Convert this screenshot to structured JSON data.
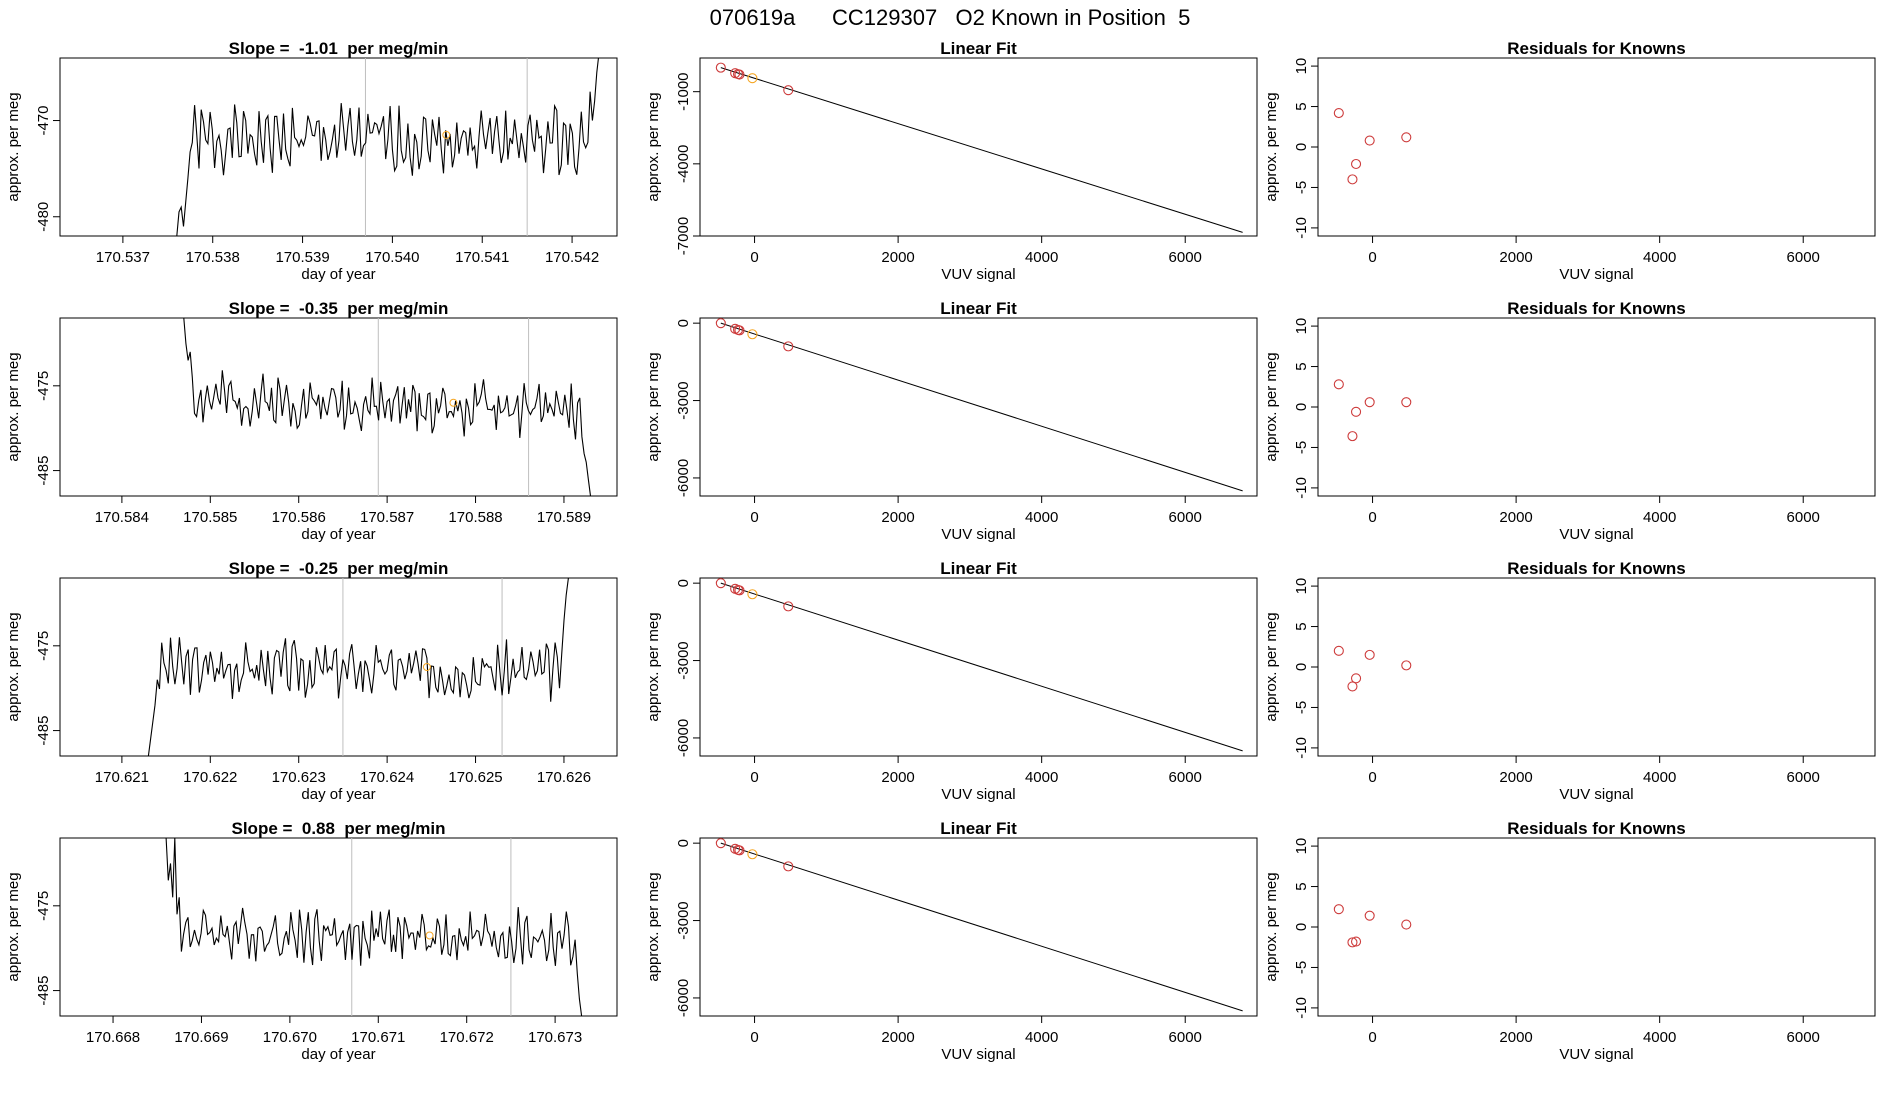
{
  "figure": {
    "title": "070619a      CC129307   O2 Known in Position  5"
  },
  "colors": {
    "line": "#000000",
    "vertical_marker": "#bebebe",
    "known_point": "#cd3b3b",
    "current_point": "#f5a623"
  },
  "chart_data": [
    {
      "type": "line",
      "row": 0,
      "col": 0,
      "title": "Slope =  -1.01  per meg/min",
      "xlabel": "day of year",
      "ylabel": "approx. per meg",
      "xlim": [
        170.5363,
        170.5425
      ],
      "ylim": [
        -482,
        -463.5
      ],
      "xticks": [
        170.537,
        170.538,
        170.539,
        170.54,
        170.541,
        170.542
      ],
      "xticklabels": [
        "170.537",
        "170.538",
        "170.539",
        "170.540",
        "170.541",
        "170.542"
      ],
      "yticks": [
        -480,
        -470
      ],
      "yticklabels": [
        "-480",
        "-470"
      ],
      "vlines": [
        170.5397,
        170.5415
      ],
      "marker": {
        "x": 170.5406,
        "y": -471.5
      },
      "trace": {
        "x_start": 170.5376,
        "x_end": 170.5423,
        "start": -483,
        "end": -463,
        "base": -472,
        "level": -472,
        "amp": 1.9,
        "seed": 1,
        "lead": [
          -482,
          -479.5,
          -479,
          -481,
          -478.5,
          -476
        ],
        "tail": [
          -467,
          -470,
          -468,
          -465,
          -463
        ]
      }
    },
    {
      "type": "scatter",
      "row": 0,
      "col": 1,
      "title": "Linear Fit",
      "xlabel": "VUV signal",
      "ylabel": "approx. per meg",
      "xlim": [
        -760,
        7000
      ],
      "ylim": [
        -7000,
        400
      ],
      "xticks": [
        0,
        2000,
        4000,
        6000
      ],
      "xticklabels": [
        "0",
        "2000",
        "4000",
        "6000"
      ],
      "yticks": [
        -7000,
        -4000,
        -1000
      ],
      "yticklabels": [
        "-7000",
        "-4000",
        "-1000"
      ],
      "fit": {
        "x": [
          -470,
          6800
        ],
        "y": [
          0,
          -6850
        ]
      },
      "points": [
        {
          "x": -470,
          "y": 0,
          "kind": "known"
        },
        {
          "x": -270,
          "y": -230,
          "kind": "known"
        },
        {
          "x": -230,
          "y": -270,
          "kind": "known"
        },
        {
          "x": -210,
          "y": -290,
          "kind": "known"
        },
        {
          "x": -30,
          "y": -440,
          "kind": "current"
        },
        {
          "x": 470,
          "y": -940,
          "kind": "known"
        }
      ]
    },
    {
      "type": "scatter",
      "row": 0,
      "col": 2,
      "title": "Residuals for Knowns",
      "xlabel": "VUV signal",
      "ylabel": "approx. per meg",
      "xlim": [
        -760,
        7000
      ],
      "ylim": [
        -11,
        11
      ],
      "xticks": [
        0,
        2000,
        4000,
        6000
      ],
      "xticklabels": [
        "0",
        "2000",
        "4000",
        "6000"
      ],
      "yticks": [
        -10,
        -5,
        0,
        5,
        10
      ],
      "yticklabels": [
        "-10",
        "-5",
        "0",
        "5",
        "10"
      ],
      "points": [
        {
          "x": -470,
          "y": 4.2,
          "kind": "known"
        },
        {
          "x": -280,
          "y": -4.0,
          "kind": "known"
        },
        {
          "x": -230,
          "y": -2.1,
          "kind": "known"
        },
        {
          "x": -40,
          "y": 0.8,
          "kind": "known"
        },
        {
          "x": 470,
          "y": 1.2,
          "kind": "known"
        }
      ]
    },
    {
      "type": "line",
      "row": 1,
      "col": 0,
      "title": "Slope =  -0.35  per meg/min",
      "xlabel": "day of year",
      "ylabel": "approx. per meg",
      "xlim": [
        170.5833,
        170.5896
      ],
      "ylim": [
        -488,
        -467
      ],
      "xticks": [
        170.584,
        170.585,
        170.586,
        170.587,
        170.588,
        170.589
      ],
      "xticklabels": [
        "170.584",
        "170.585",
        "170.586",
        "170.587",
        "170.588",
        "170.589"
      ],
      "yticks": [
        -485,
        -475
      ],
      "yticklabels": [
        "-485",
        "-475"
      ],
      "vlines": [
        170.5869,
        170.5886
      ],
      "marker": {
        "x": 170.58775,
        "y": -477
      },
      "trace": {
        "x_start": 170.5847,
        "x_end": 170.5893,
        "start": -467,
        "end": -488,
        "base": -476.5,
        "level": -478,
        "amp": 1.7,
        "seed": 2,
        "lead": [
          -467,
          -470,
          -472,
          -471,
          -474
        ],
        "tail": [
          -481,
          -483,
          -484,
          -486,
          -488
        ]
      }
    },
    {
      "type": "scatter",
      "row": 1,
      "col": 1,
      "title": "Linear Fit",
      "xlabel": "VUV signal",
      "ylabel": "approx. per meg",
      "xlim": [
        -760,
        7000
      ],
      "ylim": [
        -6700,
        200
      ],
      "xticks": [
        0,
        2000,
        4000,
        6000
      ],
      "xticklabels": [
        "0",
        "2000",
        "4000",
        "6000"
      ],
      "yticks": [
        -6000,
        -3000,
        0
      ],
      "yticklabels": [
        "-6000",
        "-3000",
        "0"
      ],
      "fit": {
        "x": [
          -470,
          6800
        ],
        "y": [
          0,
          -6500
        ]
      },
      "points": [
        {
          "x": -470,
          "y": 0,
          "kind": "known"
        },
        {
          "x": -270,
          "y": -220,
          "kind": "known"
        },
        {
          "x": -230,
          "y": -260,
          "kind": "known"
        },
        {
          "x": -210,
          "y": -280,
          "kind": "known"
        },
        {
          "x": -30,
          "y": -430,
          "kind": "current"
        },
        {
          "x": 470,
          "y": -900,
          "kind": "known"
        }
      ]
    },
    {
      "type": "scatter",
      "row": 1,
      "col": 2,
      "title": "Residuals for Knowns",
      "xlabel": "VUV signal",
      "ylabel": "approx. per meg",
      "xlim": [
        -760,
        7000
      ],
      "ylim": [
        -11,
        11
      ],
      "xticks": [
        0,
        2000,
        4000,
        6000
      ],
      "xticklabels": [
        "0",
        "2000",
        "4000",
        "6000"
      ],
      "yticks": [
        -10,
        -5,
        0,
        5,
        10
      ],
      "yticklabels": [
        "-10",
        "-5",
        "0",
        "5",
        "10"
      ],
      "points": [
        {
          "x": -470,
          "y": 2.8,
          "kind": "known"
        },
        {
          "x": -280,
          "y": -3.6,
          "kind": "known"
        },
        {
          "x": -230,
          "y": -0.6,
          "kind": "known"
        },
        {
          "x": -40,
          "y": 0.6,
          "kind": "known"
        },
        {
          "x": 470,
          "y": 0.6,
          "kind": "known"
        }
      ]
    },
    {
      "type": "line",
      "row": 2,
      "col": 0,
      "title": "Slope =  -0.25  per meg/min",
      "xlabel": "day of year",
      "ylabel": "approx. per meg",
      "xlim": [
        170.6203,
        170.6266
      ],
      "ylim": [
        -488,
        -467
      ],
      "xticks": [
        170.621,
        170.622,
        170.623,
        170.624,
        170.625,
        170.626
      ],
      "xticklabels": [
        "170.621",
        "170.622",
        "170.623",
        "170.624",
        "170.625",
        "170.626"
      ],
      "yticks": [
        -485,
        -475
      ],
      "yticklabels": [
        "-485",
        "-475"
      ],
      "vlines": [
        170.6235,
        170.6253
      ],
      "marker": {
        "x": 170.62445,
        "y": -477.5
      },
      "trace": {
        "x_start": 170.6213,
        "x_end": 170.62605,
        "start": -488,
        "end": -467,
        "base": -477.5,
        "level": -478,
        "amp": 1.8,
        "seed": 3,
        "lead": [
          -488,
          -486,
          -484,
          -482,
          -479
        ],
        "tail": [
          -480,
          -476,
          -472,
          -469,
          -467
        ]
      }
    },
    {
      "type": "scatter",
      "row": 2,
      "col": 1,
      "title": "Linear Fit",
      "xlabel": "VUV signal",
      "ylabel": "approx. per meg",
      "xlim": [
        -760,
        7000
      ],
      "ylim": [
        -6700,
        200
      ],
      "xticks": [
        0,
        2000,
        4000,
        6000
      ],
      "xticklabels": [
        "0",
        "2000",
        "4000",
        "6000"
      ],
      "yticks": [
        -6000,
        -3000,
        0
      ],
      "yticklabels": [
        "-6000",
        "-3000",
        "0"
      ],
      "fit": {
        "x": [
          -470,
          6800
        ],
        "y": [
          0,
          -6500
        ]
      },
      "points": [
        {
          "x": -470,
          "y": 0,
          "kind": "known"
        },
        {
          "x": -270,
          "y": -220,
          "kind": "known"
        },
        {
          "x": -230,
          "y": -260,
          "kind": "known"
        },
        {
          "x": -210,
          "y": -280,
          "kind": "known"
        },
        {
          "x": -30,
          "y": -430,
          "kind": "current"
        },
        {
          "x": 470,
          "y": -900,
          "kind": "known"
        }
      ]
    },
    {
      "type": "scatter",
      "row": 2,
      "col": 2,
      "title": "Residuals for Knowns",
      "xlabel": "VUV signal",
      "ylabel": "approx. per meg",
      "xlim": [
        -760,
        7000
      ],
      "ylim": [
        -11,
        11
      ],
      "xticks": [
        0,
        2000,
        4000,
        6000
      ],
      "xticklabels": [
        "0",
        "2000",
        "4000",
        "6000"
      ],
      "yticks": [
        -10,
        -5,
        0,
        5,
        10
      ],
      "yticklabels": [
        "-10",
        "-5",
        "0",
        "5",
        "10"
      ],
      "points": [
        {
          "x": -470,
          "y": 2.0,
          "kind": "known"
        },
        {
          "x": -280,
          "y": -2.4,
          "kind": "known"
        },
        {
          "x": -230,
          "y": -1.4,
          "kind": "known"
        },
        {
          "x": -40,
          "y": 1.5,
          "kind": "known"
        },
        {
          "x": 470,
          "y": 0.2,
          "kind": "known"
        }
      ]
    },
    {
      "type": "line",
      "row": 3,
      "col": 0,
      "title": "Slope =  0.88  per meg/min",
      "xlabel": "day of year",
      "ylabel": "approx. per meg",
      "xlim": [
        170.6674,
        170.6737
      ],
      "ylim": [
        -488,
        -467
      ],
      "xticks": [
        170.668,
        170.669,
        170.67,
        170.671,
        170.672,
        170.673
      ],
      "xticklabels": [
        "170.668",
        "170.669",
        "170.670",
        "170.671",
        "170.672",
        "170.673"
      ],
      "yticks": [
        -485,
        -475
      ],
      "yticklabels": [
        "-485",
        "-475"
      ],
      "vlines": [
        170.6707,
        170.6725
      ],
      "marker": {
        "x": 170.67158,
        "y": -478.5
      },
      "trace": {
        "x_start": 170.6686,
        "x_end": 170.6733,
        "start": -467,
        "end": -488,
        "base": -478,
        "level": -479,
        "amp": 1.8,
        "seed": 4,
        "lead": [
          -467,
          -472,
          -470,
          -474,
          -467,
          -476,
          -474
        ],
        "tail": [
          -481,
          -479,
          -483,
          -486,
          -488
        ]
      }
    },
    {
      "type": "scatter",
      "row": 3,
      "col": 1,
      "title": "Linear Fit",
      "xlabel": "VUV signal",
      "ylabel": "approx. per meg",
      "xlim": [
        -760,
        7000
      ],
      "ylim": [
        -6700,
        200
      ],
      "xticks": [
        0,
        2000,
        4000,
        6000
      ],
      "xticklabels": [
        "0",
        "2000",
        "4000",
        "6000"
      ],
      "yticks": [
        -6000,
        -3000,
        0
      ],
      "yticklabels": [
        "-6000",
        "-3000",
        "0"
      ],
      "fit": {
        "x": [
          -470,
          6800
        ],
        "y": [
          0,
          -6500
        ]
      },
      "points": [
        {
          "x": -470,
          "y": 0,
          "kind": "known"
        },
        {
          "x": -270,
          "y": -220,
          "kind": "known"
        },
        {
          "x": -230,
          "y": -260,
          "kind": "known"
        },
        {
          "x": -210,
          "y": -280,
          "kind": "known"
        },
        {
          "x": -30,
          "y": -430,
          "kind": "current"
        },
        {
          "x": 470,
          "y": -900,
          "kind": "known"
        }
      ]
    },
    {
      "type": "scatter",
      "row": 3,
      "col": 2,
      "title": "Residuals for Knowns",
      "xlabel": "VUV signal",
      "ylabel": "approx. per meg",
      "xlim": [
        -760,
        7000
      ],
      "ylim": [
        -11,
        11
      ],
      "xticks": [
        0,
        2000,
        4000,
        6000
      ],
      "xticklabels": [
        "0",
        "2000",
        "4000",
        "6000"
      ],
      "yticks": [
        -10,
        -5,
        0,
        5,
        10
      ],
      "yticklabels": [
        "-10",
        "-5",
        "0",
        "5",
        "10"
      ],
      "points": [
        {
          "x": -470,
          "y": 2.2,
          "kind": "known"
        },
        {
          "x": -280,
          "y": -1.9,
          "kind": "known"
        },
        {
          "x": -230,
          "y": -1.8,
          "kind": "known"
        },
        {
          "x": -40,
          "y": 1.4,
          "kind": "known"
        },
        {
          "x": 470,
          "y": 0.3,
          "kind": "known"
        }
      ]
    }
  ]
}
